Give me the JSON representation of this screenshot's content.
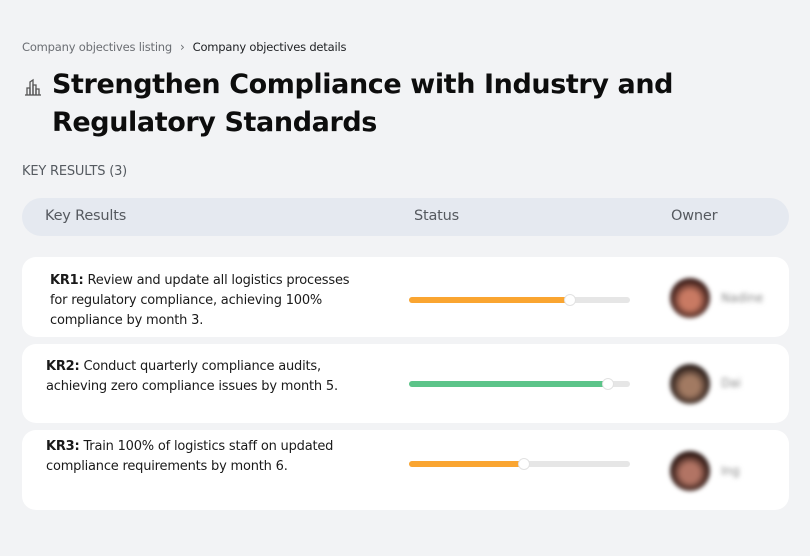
{
  "breadcrumb": {
    "items": [
      {
        "label": "Company objectives listing"
      },
      {
        "label": "Company objectives details"
      }
    ],
    "separator": "›"
  },
  "objective": {
    "icon": "building-skyline-icon",
    "title": "Strengthen Compliance with Industry and Regulatory Standards"
  },
  "key_results_section": {
    "label": "KEY RESULTS (3)"
  },
  "table": {
    "headers": {
      "key_results": "Key Results",
      "status": "Status",
      "owner": "Owner"
    },
    "rows": [
      {
        "id": "KR1:",
        "text": " Review and update all logistics processes for regulatory compliance, achieving 100% compliance by month 3.",
        "progress": 73,
        "color": "#faa531",
        "owner_name": "Nadine",
        "avatar_colors": [
          "#3a1c18",
          "#c97a63"
        ]
      },
      {
        "id": "KR2:",
        "text": " Conduct quarterly compliance audits, achieving zero compliance issues by month 5.",
        "progress": 90,
        "color": "#5cc489",
        "owner_name": "Dai",
        "avatar_colors": [
          "#2b1e1a",
          "#a27a62"
        ]
      },
      {
        "id": "KR3:",
        "text": " Train 100% of logistics staff on updated compliance requirements by month 6.",
        "progress": 52,
        "color": "#faa531",
        "owner_name": "Ing",
        "avatar_colors": [
          "#2a1511",
          "#b27464"
        ]
      }
    ]
  },
  "colors": {
    "background": "#f2f3f5",
    "header_bg": "#e5e9f0",
    "progress_orange": "#faa531",
    "progress_green": "#5cc489",
    "progress_track": "#e6e6e6"
  }
}
